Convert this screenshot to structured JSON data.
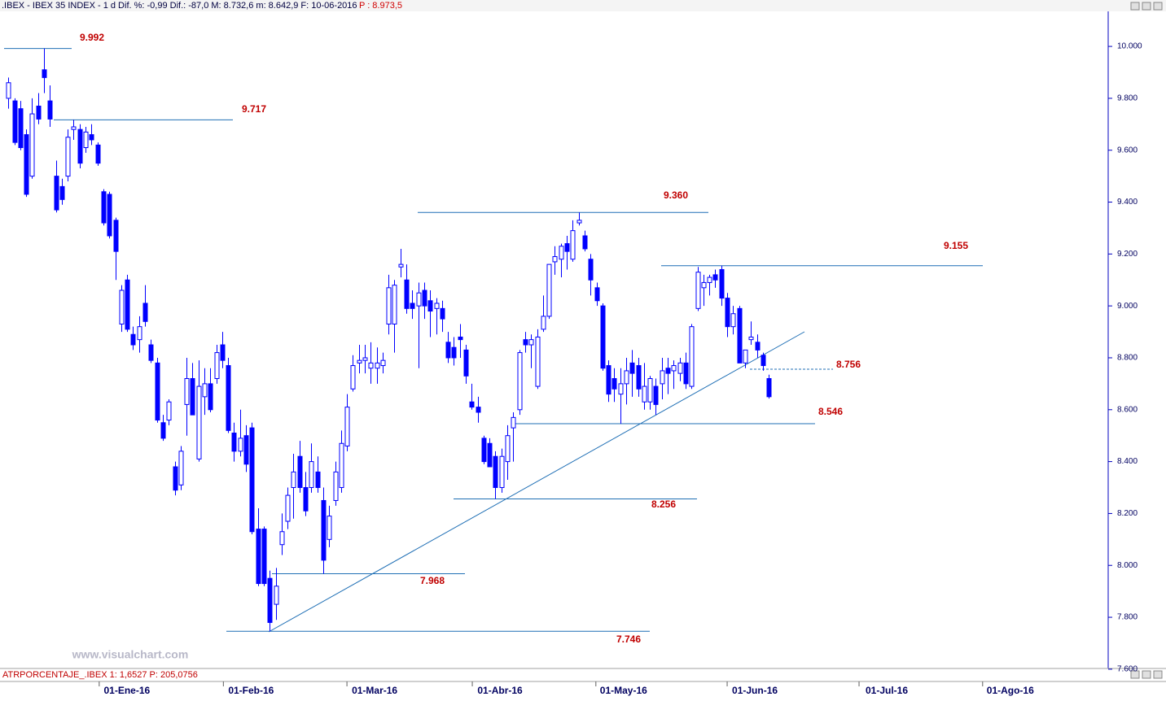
{
  "header": {
    "title": ".IBEX - IBEX 35 INDEX - 1 d  Dif. %: -0,99  Dif.: -87,0  M: 8.732,6  m: 8.642,9  F: 10-06-2016",
    "price": "P : 8.973,5"
  },
  "watermark": "www.visualchart.com",
  "indicator": "ATRPORCENTAJE_.IBEX 1: 1,6527 P: 205,0756",
  "chart_data": {
    "type": "candlestick",
    "up_color": "#ffffff",
    "down_color": "#0000ff",
    "edge_color": "#0000ff",
    "ylim": [
      7609,
      10135
    ],
    "yticks": [
      {
        "value": 7600,
        "label": "7.600"
      },
      {
        "value": 7800,
        "label": "7.800"
      },
      {
        "value": 8000,
        "label": "8.000"
      },
      {
        "value": 8200,
        "label": "8.200"
      },
      {
        "value": 8400,
        "label": "8.400"
      },
      {
        "value": 8600,
        "label": "8.600"
      },
      {
        "value": 8800,
        "label": "8.800"
      },
      {
        "value": 9000,
        "label": "9.000"
      },
      {
        "value": 9200,
        "label": "9.200"
      },
      {
        "value": 9400,
        "label": "9.400"
      },
      {
        "value": 9600,
        "label": "9.600"
      },
      {
        "value": 9800,
        "label": "9.800"
      },
      {
        "value": 10000,
        "label": "10.000"
      }
    ],
    "xlim": [
      -1.4,
      185
    ],
    "xticks": [
      {
        "value": 15.3,
        "label": "01-Ene-16"
      },
      {
        "value": 36.2,
        "label": "01-Feb-16"
      },
      {
        "value": 57,
        "label": "01-Mar-16"
      },
      {
        "value": 78.1,
        "label": "01-Abr-16"
      },
      {
        "value": 98.9,
        "label": "01-May-16"
      },
      {
        "value": 121,
        "label": "01-Jun-16"
      },
      {
        "value": 143.2,
        "label": "01-Jul-16"
      },
      {
        "value": 164,
        "label": "01-Ago-16"
      }
    ],
    "levels": [
      {
        "value": 9992,
        "label": "9.992"
      },
      {
        "value": 9717,
        "label": "9.717"
      },
      {
        "value": 9360,
        "label": "9.360"
      },
      {
        "value": 9155,
        "label": "9.155"
      },
      {
        "value": 8756,
        "label": "8.756"
      },
      {
        "value": 8546,
        "label": "8.546"
      },
      {
        "value": 8256,
        "label": "8.256"
      },
      {
        "value": 7968,
        "label": "7.968"
      },
      {
        "value": 7746,
        "label": "7.746"
      }
    ],
    "ohlc": [
      [
        9800,
        9880,
        9760,
        9860
      ],
      [
        9790,
        9800,
        9620,
        9630
      ],
      [
        9760,
        9790,
        9600,
        9610
      ],
      [
        9660,
        9680,
        9420,
        9430
      ],
      [
        9500,
        9800,
        9490,
        9740
      ],
      [
        9770,
        9820,
        9700,
        9720
      ],
      [
        9910,
        9992,
        9820,
        9880
      ],
      [
        9790,
        9850,
        9690,
        9720
      ],
      [
        9500,
        9560,
        9360,
        9370
      ],
      [
        9460,
        9490,
        9390,
        9410
      ],
      [
        9500,
        9680,
        9480,
        9650
      ],
      [
        9680,
        9717,
        9640,
        9690
      ],
      [
        9680,
        9700,
        9530,
        9550
      ],
      [
        9610,
        9690,
        9590,
        9670
      ],
      [
        9660,
        9700,
        9620,
        9640
      ],
      [
        9620,
        9630,
        9540,
        9550
      ],
      [
        9440,
        9450,
        9310,
        9320
      ],
      [
        9430,
        9440,
        9260,
        9270
      ],
      [
        9330,
        9340,
        9100,
        9210
      ],
      [
        8930,
        9080,
        8900,
        9060
      ],
      [
        9100,
        9120,
        8900,
        8910
      ],
      [
        8890,
        8920,
        8830,
        8850
      ],
      [
        8870,
        8960,
        8820,
        8920
      ],
      [
        9010,
        9080,
        8920,
        8940
      ],
      [
        8850,
        8870,
        8780,
        8790
      ],
      [
        8780,
        8800,
        8550,
        8560
      ],
      [
        8550,
        8580,
        8480,
        8490
      ],
      [
        8560,
        8640,
        8540,
        8630
      ],
      [
        8380,
        8400,
        8270,
        8290
      ],
      [
        8310,
        8460,
        8290,
        8440
      ],
      [
        8620,
        8800,
        8500,
        8720
      ],
      [
        8720,
        8780,
        8580,
        8580
      ],
      [
        8410,
        8790,
        8400,
        8690
      ],
      [
        8650,
        8760,
        8580,
        8700
      ],
      [
        8700,
        8760,
        8590,
        8600
      ],
      [
        8720,
        8850,
        8700,
        8820
      ],
      [
        8850,
        8900,
        8760,
        8790
      ],
      [
        8770,
        8800,
        8510,
        8520
      ],
      [
        8510,
        8550,
        8400,
        8440
      ],
      [
        8440,
        8600,
        8420,
        8490
      ],
      [
        8500,
        8540,
        8360,
        8390
      ],
      [
        8530,
        8550,
        8120,
        8130
      ],
      [
        8140,
        8220,
        7920,
        7930
      ],
      [
        8140,
        8150,
        7920,
        7930
      ],
      [
        7950,
        7980,
        7746,
        7780
      ],
      [
        7850,
        7990,
        7790,
        7920
      ],
      [
        8080,
        8200,
        8040,
        8130
      ],
      [
        8170,
        8300,
        8140,
        8270
      ],
      [
        8300,
        8430,
        8180,
        8360
      ],
      [
        8420,
        8480,
        8280,
        8300
      ],
      [
        8300,
        8360,
        8190,
        8210
      ],
      [
        8300,
        8470,
        8280,
        8400
      ],
      [
        8360,
        8420,
        8280,
        8300
      ],
      [
        8250,
        8300,
        7968,
        8020
      ],
      [
        8100,
        8230,
        8070,
        8190
      ],
      [
        8250,
        8400,
        8230,
        8360
      ],
      [
        8300,
        8520,
        8280,
        8470
      ],
      [
        8460,
        8660,
        8440,
        8610
      ],
      [
        8680,
        8810,
        8670,
        8770
      ],
      [
        8780,
        8850,
        8740,
        8790
      ],
      [
        8790,
        8850,
        8740,
        8800
      ],
      [
        8760,
        8860,
        8700,
        8780
      ],
      [
        8760,
        8840,
        8700,
        8780
      ],
      [
        8770,
        8820,
        8740,
        8790
      ],
      [
        8930,
        9120,
        8890,
        9070
      ],
      [
        8930,
        9100,
        8820,
        9080
      ],
      [
        9150,
        9220,
        9110,
        9160
      ],
      [
        9100,
        9160,
        8970,
        8990
      ],
      [
        9010,
        9060,
        8950,
        8990
      ],
      [
        9000,
        9090,
        8760,
        9050
      ],
      [
        9060,
        9090,
        8950,
        9000
      ],
      [
        9020,
        9060,
        8880,
        8980
      ],
      [
        8990,
        9030,
        8890,
        9010
      ],
      [
        8990,
        9020,
        8900,
        8950
      ],
      [
        8860,
        8900,
        8780,
        8800
      ],
      [
        8840,
        8880,
        8770,
        8800
      ],
      [
        8880,
        8930,
        8800,
        8870
      ],
      [
        8830,
        8850,
        8700,
        8730
      ],
      [
        8630,
        8700,
        8600,
        8610
      ],
      [
        8610,
        8650,
        8550,
        8590
      ],
      [
        8490,
        8500,
        8390,
        8400
      ],
      [
        8470,
        8490,
        8380,
        8380
      ],
      [
        8420,
        8440,
        8256,
        8300
      ],
      [
        8300,
        8450,
        8280,
        8420
      ],
      [
        8400,
        8540,
        8330,
        8500
      ],
      [
        8530,
        8590,
        8400,
        8570
      ],
      [
        8600,
        8830,
        8580,
        8820
      ],
      [
        8870,
        8900,
        8820,
        8850
      ],
      [
        8850,
        8890,
        8760,
        8870
      ],
      [
        8690,
        8910,
        8680,
        8880
      ],
      [
        8910,
        9040,
        8900,
        8960
      ],
      [
        8960,
        9160,
        8950,
        9160
      ],
      [
        9170,
        9230,
        9120,
        9190
      ],
      [
        9180,
        9240,
        9110,
        9230
      ],
      [
        9240,
        9270,
        9140,
        9210
      ],
      [
        9180,
        9330,
        9170,
        9290
      ],
      [
        9320,
        9360,
        9310,
        9330
      ],
      [
        9270,
        9290,
        9210,
        9220
      ],
      [
        9180,
        9200,
        9040,
        9100
      ],
      [
        9070,
        9090,
        9000,
        9020
      ],
      [
        9000,
        9010,
        8750,
        8760
      ],
      [
        8770,
        8790,
        8630,
        8660
      ],
      [
        8720,
        8760,
        8630,
        8680
      ],
      [
        8660,
        8760,
        8546,
        8700
      ],
      [
        8700,
        8800,
        8620,
        8750
      ],
      [
        8780,
        8830,
        8650,
        8740
      ],
      [
        8770,
        8800,
        8650,
        8680
      ],
      [
        8630,
        8780,
        8600,
        8690
      ],
      [
        8630,
        8730,
        8600,
        8720
      ],
      [
        8690,
        8720,
        8580,
        8620
      ],
      [
        8700,
        8800,
        8640,
        8750
      ],
      [
        8760,
        8800,
        8660,
        8740
      ],
      [
        8750,
        8790,
        8680,
        8770
      ],
      [
        8740,
        8800,
        8710,
        8780
      ],
      [
        8780,
        8820,
        8680,
        8700
      ],
      [
        8690,
        8930,
        8680,
        8920
      ],
      [
        8990,
        9150,
        8980,
        9130
      ],
      [
        9070,
        9120,
        9000,
        9090
      ],
      [
        9090,
        9120,
        9040,
        9110
      ],
      [
        9120,
        9140,
        9070,
        9100
      ],
      [
        9140,
        9155,
        9000,
        9030
      ],
      [
        9030,
        9050,
        8880,
        8920
      ],
      [
        8920,
        9000,
        8890,
        8970
      ],
      [
        8990,
        9000,
        8780,
        8780
      ],
      [
        8780,
        8830,
        8760,
        8830
      ],
      [
        8870,
        8940,
        8850,
        8880
      ],
      [
        8860,
        8890,
        8800,
        8830
      ],
      [
        8810,
        8820,
        8750,
        8770
      ],
      [
        8720,
        8735,
        8643,
        8650
      ]
    ]
  }
}
